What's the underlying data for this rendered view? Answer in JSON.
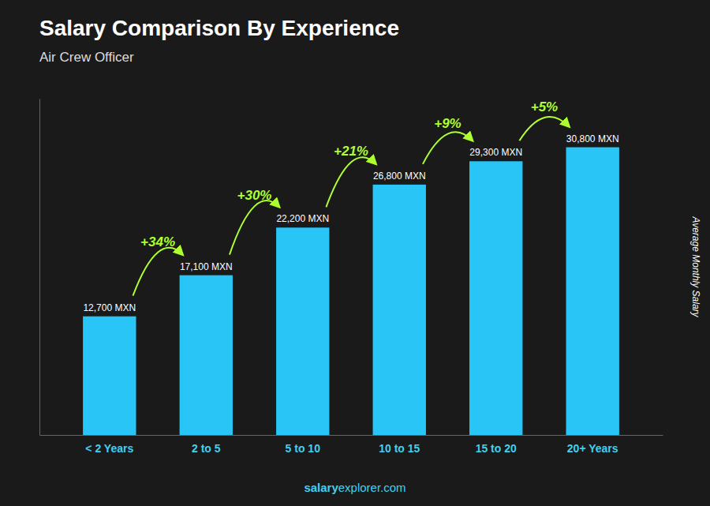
{
  "chart_data": {
    "type": "bar",
    "title": "Salary Comparison By Experience",
    "subtitle": "Air Crew Officer",
    "categories": [
      "< 2 Years",
      "2 to 5",
      "5 to 10",
      "10 to 15",
      "15 to 20",
      "20+ Years"
    ],
    "values": [
      12700,
      17100,
      22200,
      26800,
      29300,
      30800
    ],
    "value_labels": [
      "12,700 MXN",
      "17,100 MXN",
      "22,200 MXN",
      "26,800 MXN",
      "29,300 MXN",
      "30,800 MXN"
    ],
    "data_labels": true,
    "color": "#29C5F6",
    "ylabel": "Average Monthly Salary",
    "ylim": [
      0,
      36000
    ],
    "tick_labels": "x",
    "grid": false,
    "annotations": [
      "+34%",
      "+30%",
      "+21%",
      "+9%",
      "+5%"
    ],
    "footer": [
      "salary",
      "explorer.com"
    ]
  }
}
